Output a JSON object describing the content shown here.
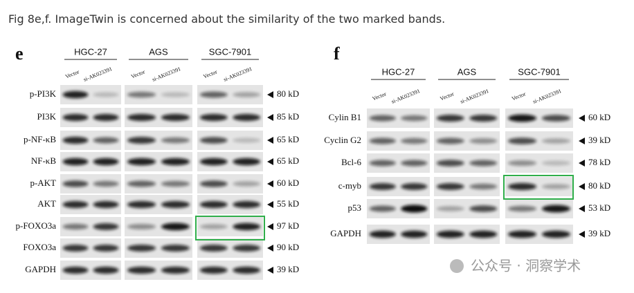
{
  "caption": "Fig 8e,f. ImageTwin is concerned about the similarity of the two marked bands.",
  "panels": [
    {
      "letter": "e",
      "cell_lines": [
        "HGC-27",
        "AGS",
        "SGC-7901"
      ],
      "lanes": [
        "Vector",
        "si-AK023391"
      ],
      "rows": [
        {
          "protein": "p-PI3K",
          "size": "80 kD"
        },
        {
          "protein": "PI3K",
          "size": "85 kD"
        },
        {
          "protein": "p-NF-κB",
          "size": "65 kD"
        },
        {
          "protein": "NF-κB",
          "size": "65 kD"
        },
        {
          "protein": "p-AKT",
          "size": "60 kD"
        },
        {
          "protein": "AKT",
          "size": "55 kD"
        },
        {
          "protein": "p-FOXO3a",
          "size": "97 kD"
        },
        {
          "protein": "FOXO3a",
          "size": "90 kD"
        },
        {
          "protein": "GAPDH",
          "size": "39 kD"
        }
      ]
    },
    {
      "letter": "f",
      "cell_lines": [
        "HGC-27",
        "AGS",
        "SGC-7901"
      ],
      "lanes": [
        "Vector",
        "si-AK023391"
      ],
      "rows": [
        {
          "protein": "Cylin B1",
          "size": "60 kD"
        },
        {
          "protein": "Cyclin G2",
          "size": "39 kD"
        },
        {
          "protein": "Bcl-6",
          "size": "78 kD"
        },
        {
          "protein": "c-myb",
          "size": "80 kD"
        },
        {
          "protein": "p53",
          "size": "53 kD"
        },
        {
          "protein": "GAPDH",
          "size": "39 kD"
        }
      ]
    }
  ],
  "watermark": "公众号 · 洞察学术"
}
